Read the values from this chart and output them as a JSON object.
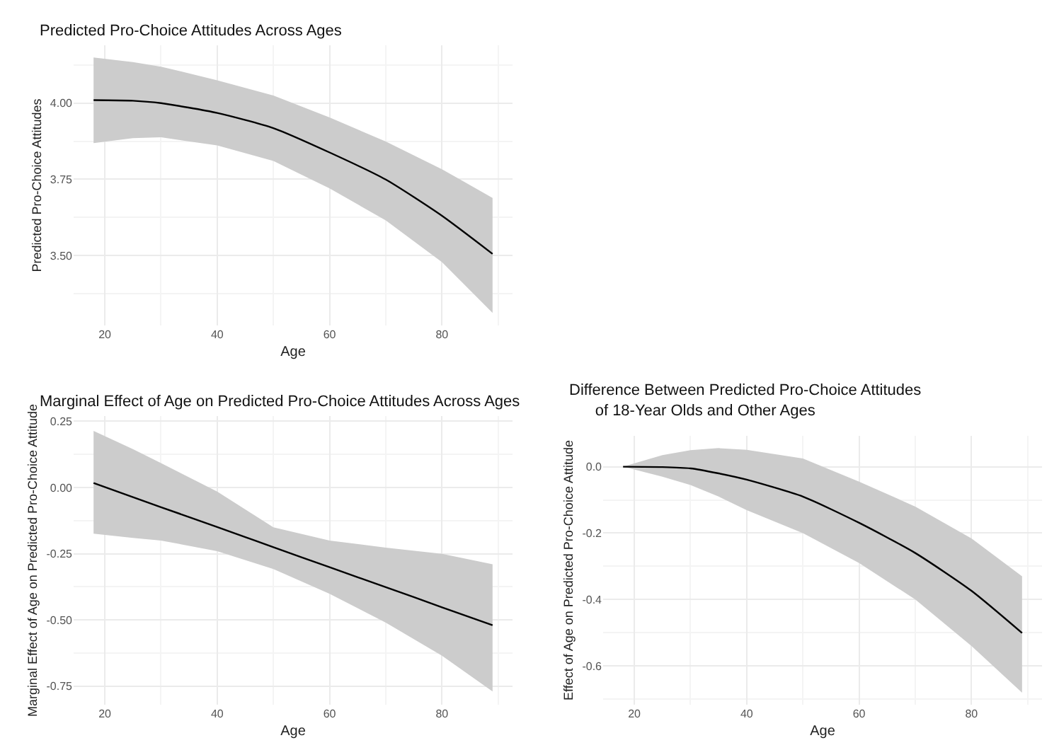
{
  "chart_data": [
    {
      "type": "line",
      "title": "Predicted Pro-Choice Attitudes Across Ages",
      "xlabel": "Age",
      "ylabel": "Predicted Pro-Choice Attitudes",
      "x": [
        18,
        25,
        30,
        40,
        50,
        60,
        70,
        80,
        89
      ],
      "series": [
        {
          "color": "#000000",
          "values": [
            4.01,
            4.008,
            4.0,
            3.968,
            3.918,
            3.838,
            3.749,
            3.63,
            3.505
          ],
          "lower": [
            3.869,
            3.885,
            3.888,
            3.861,
            3.81,
            3.72,
            3.615,
            3.478,
            3.311
          ],
          "upper": [
            4.15,
            4.135,
            4.12,
            4.075,
            4.025,
            3.953,
            3.874,
            3.783,
            3.689
          ]
        }
      ],
      "xlim": [
        14.45,
        92.55
      ],
      "xticks": [
        20,
        40,
        60,
        80
      ],
      "ylim": [
        3.27,
        4.19
      ],
      "yticks": [
        {
          "value": 3.5,
          "label": "3.50"
        },
        {
          "value": 3.75,
          "label": "3.75"
        },
        {
          "value": 4.0,
          "label": "4.00"
        }
      ],
      "grid": true
    },
    {
      "type": "line",
      "title": "Marginal Effect of Age on Predicted Pro-Choice Attitudes Across Ages",
      "xlabel": "Age",
      "ylabel": "Marginal Effect of Age on Predicted Pro-Choice Attitude",
      "x": [
        18,
        25,
        30,
        40,
        50,
        60,
        70,
        80,
        89
      ],
      "series": [
        {
          "color": "#000000",
          "values": [
            0.017,
            -0.036,
            -0.074,
            -0.149,
            -0.225,
            -0.301,
            -0.376,
            -0.452,
            -0.52
          ],
          "lower": [
            -0.174,
            -0.19,
            -0.2,
            -0.24,
            -0.308,
            -0.401,
            -0.51,
            -0.635,
            -0.77
          ],
          "upper": [
            0.214,
            0.145,
            0.092,
            -0.015,
            -0.15,
            -0.2,
            -0.227,
            -0.25,
            -0.29
          ]
        }
      ],
      "xlim": [
        14.45,
        92.55
      ],
      "xticks": [
        20,
        40,
        60,
        80
      ],
      "ylim": [
        -0.82,
        0.27
      ],
      "yticks": [
        {
          "value": -0.75,
          "label": "-0.75"
        },
        {
          "value": -0.5,
          "label": "-0.50"
        },
        {
          "value": -0.25,
          "label": "-0.25"
        },
        {
          "value": 0,
          "label": "0.00"
        },
        {
          "value": 0.25,
          "label": "0.25"
        }
      ],
      "grid": true
    },
    {
      "type": "line",
      "title": "Difference Between Predicted Pro-Choice Attitudes\n      of 18-Year Olds and Other Ages",
      "xlabel": "Age",
      "ylabel": "Effect of Age on Predicted Pro-Choice Attitude",
      "x": [
        18,
        25,
        30,
        35,
        40,
        50,
        60,
        70,
        80,
        89
      ],
      "series": [
        {
          "color": "#000000",
          "values": [
            0,
            -0.001,
            -0.005,
            -0.02,
            -0.039,
            -0.09,
            -0.169,
            -0.26,
            -0.374,
            -0.501
          ],
          "lower": [
            0,
            -0.03,
            -0.055,
            -0.09,
            -0.131,
            -0.2,
            -0.29,
            -0.4,
            -0.54,
            -0.681
          ],
          "upper": [
            0,
            0.035,
            0.05,
            0.056,
            0.051,
            0.025,
            -0.045,
            -0.12,
            -0.216,
            -0.33
          ]
        }
      ],
      "xlim": [
        14.45,
        92.55
      ],
      "xticks": [
        20,
        40,
        60,
        80
      ],
      "ylim": [
        -0.717,
        0.093
      ],
      "yticks": [
        {
          "value": -0.6,
          "label": "-0.6"
        },
        {
          "value": -0.4,
          "label": "-0.4"
        },
        {
          "value": -0.2,
          "label": "-0.2"
        },
        {
          "value": 0,
          "label": "0.0"
        }
      ],
      "grid": true
    }
  ]
}
